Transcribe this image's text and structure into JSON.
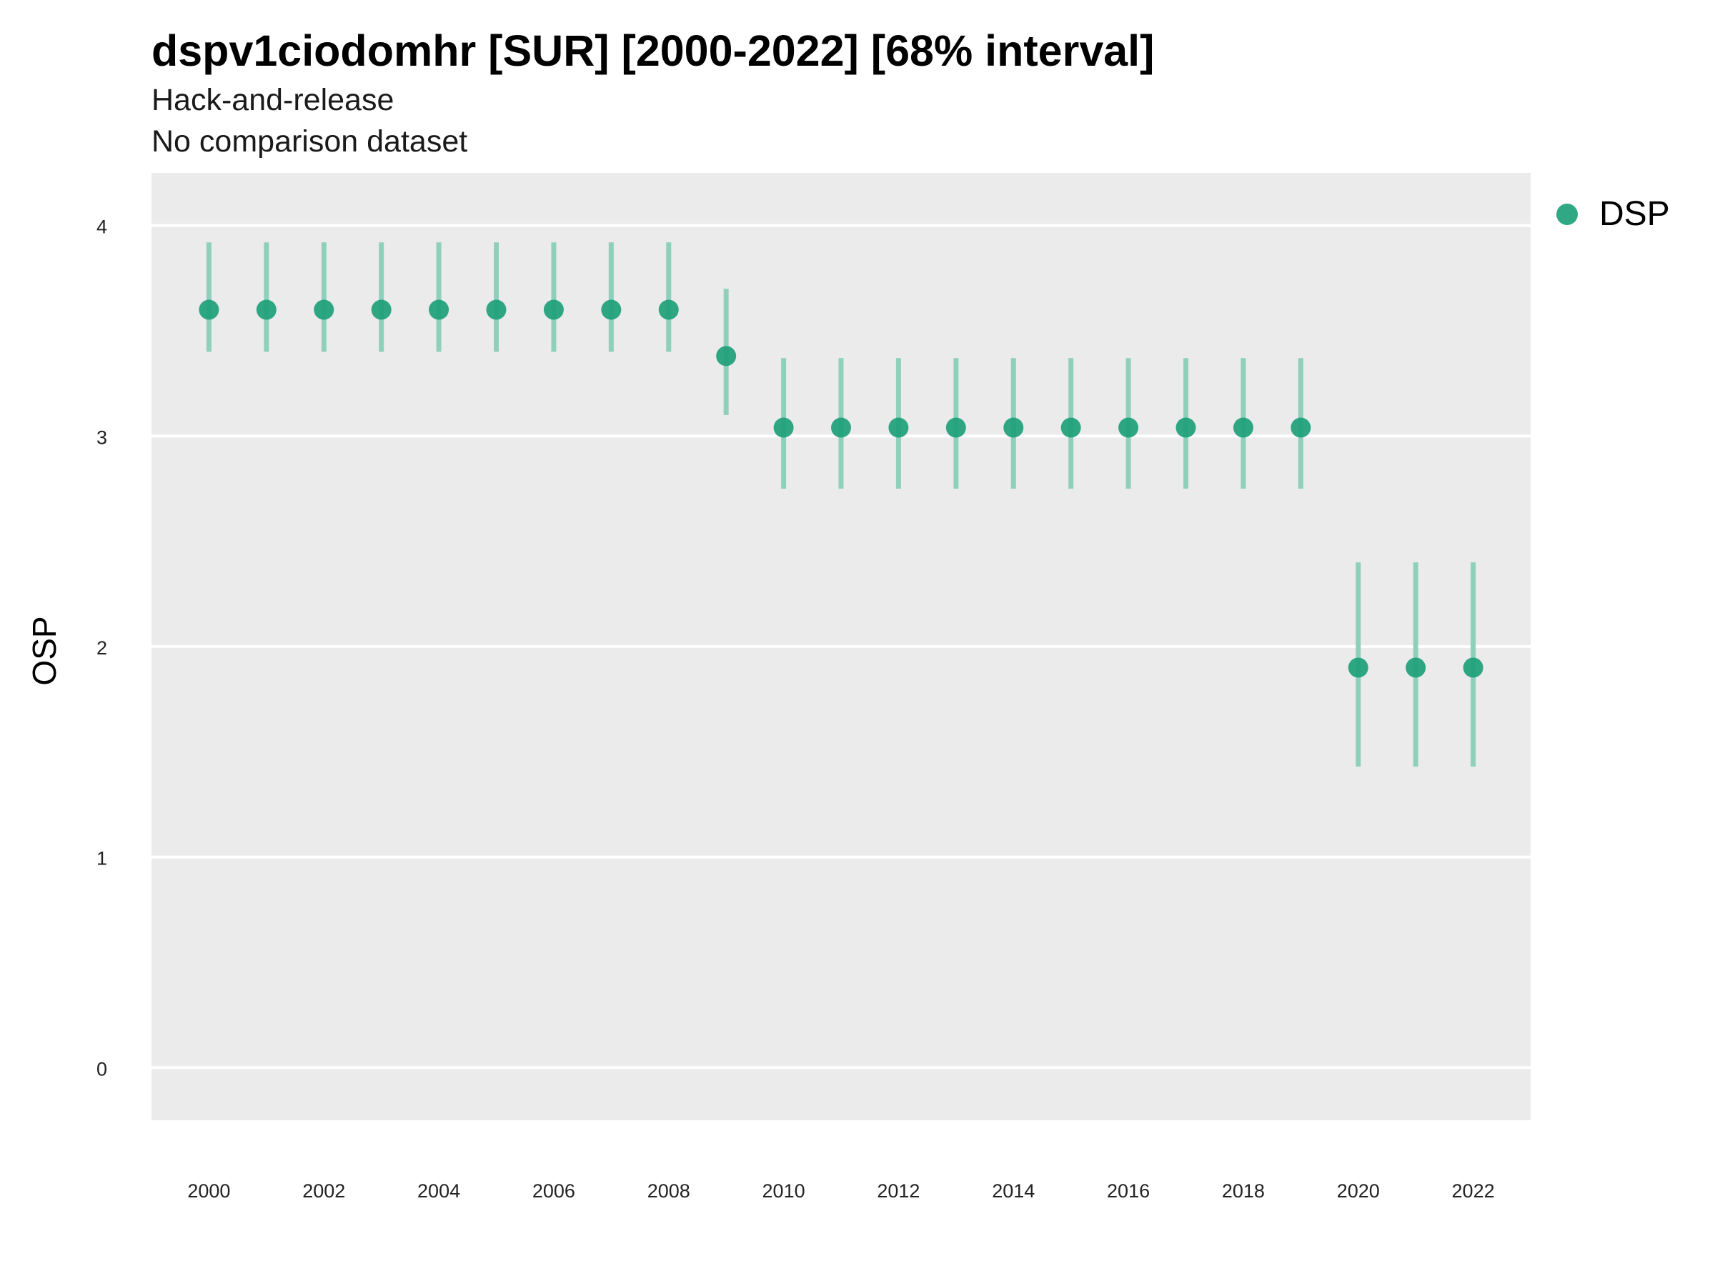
{
  "title": "dspv1ciodomhr [SUR] [2000-2022] [68% interval]",
  "subtitle": "Hack-and-release",
  "subtitle2": "No comparison dataset",
  "colors": {
    "panel": "#ebebeb",
    "grid": "#ffffff",
    "point": "#1b9e77",
    "errorbar": "#8fd0bb"
  },
  "legend": {
    "items": [
      {
        "label": "DSP",
        "color": "#1b9e77"
      }
    ],
    "position": "right"
  },
  "chart_data": {
    "type": "scatter",
    "title": "dspv1ciodomhr [SUR] [2000-2022] [68% interval]",
    "subtitle": "Hack-and-release",
    "xlabel": "",
    "ylabel": "OSP",
    "xlim": [
      1999,
      2023
    ],
    "ylim": [
      -0.25,
      4.25
    ],
    "grid": true,
    "x_ticks": [
      2000,
      2002,
      2004,
      2006,
      2008,
      2010,
      2012,
      2014,
      2016,
      2018,
      2020,
      2022
    ],
    "y_ticks": [
      0,
      1,
      2,
      3,
      4
    ],
    "series": [
      {
        "name": "DSP",
        "x": [
          2000,
          2001,
          2002,
          2003,
          2004,
          2005,
          2006,
          2007,
          2008,
          2009,
          2010,
          2011,
          2012,
          2013,
          2014,
          2015,
          2016,
          2017,
          2018,
          2019,
          2020,
          2021,
          2022
        ],
        "y": [
          3.6,
          3.6,
          3.6,
          3.6,
          3.6,
          3.6,
          3.6,
          3.6,
          3.6,
          3.38,
          3.04,
          3.04,
          3.04,
          3.04,
          3.04,
          3.04,
          3.04,
          3.04,
          3.04,
          3.04,
          1.9,
          1.9,
          1.9
        ],
        "lower": [
          3.4,
          3.4,
          3.4,
          3.4,
          3.4,
          3.4,
          3.4,
          3.4,
          3.4,
          3.1,
          2.75,
          2.75,
          2.75,
          2.75,
          2.75,
          2.75,
          2.75,
          2.75,
          2.75,
          2.75,
          1.43,
          1.43,
          1.43
        ],
        "upper": [
          3.92,
          3.92,
          3.92,
          3.92,
          3.92,
          3.92,
          3.92,
          3.92,
          3.92,
          3.7,
          3.37,
          3.37,
          3.37,
          3.37,
          3.37,
          3.37,
          3.37,
          3.37,
          3.37,
          3.37,
          2.4,
          2.4,
          2.4
        ]
      }
    ]
  }
}
